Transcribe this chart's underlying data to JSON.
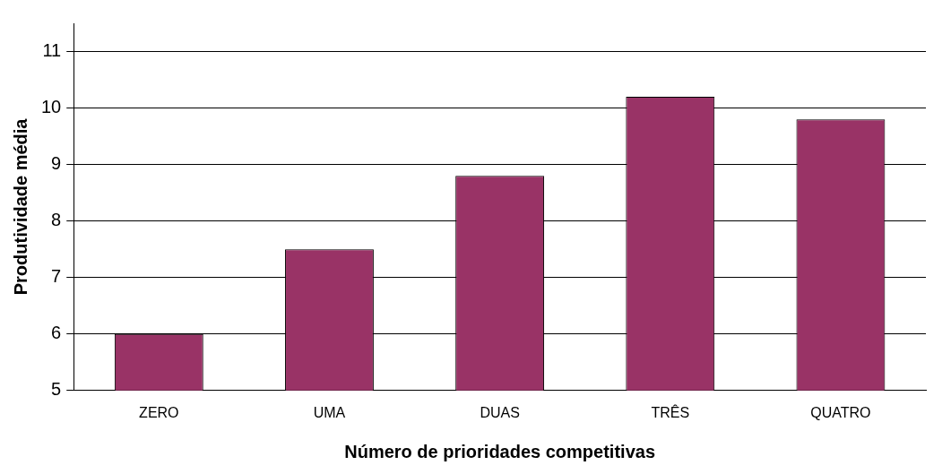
{
  "chart_data": {
    "type": "bar",
    "xlabel": "Número de prioridades competitivas",
    "ylabel": "Produtividade média",
    "categories": [
      "ZERO",
      "UMA",
      "DUAS",
      "TRÊS",
      "QUATRO"
    ],
    "values": [
      6.0,
      7.5,
      8.8,
      10.2,
      9.8
    ],
    "color": "#993366",
    "ylim": [
      5,
      11.5
    ],
    "yticks": [
      5,
      6,
      7,
      8,
      9,
      10,
      11
    ],
    "grid": "y"
  }
}
